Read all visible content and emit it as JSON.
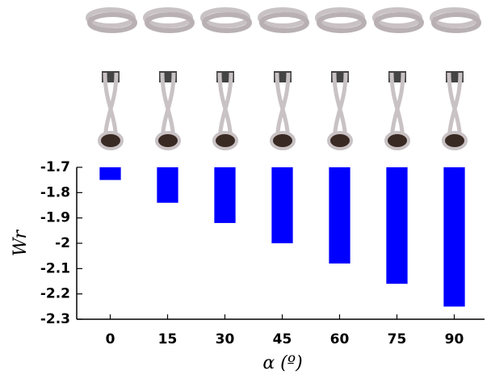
{
  "chart_data": {
    "type": "bar",
    "categories": [
      "0",
      "15",
      "30",
      "45",
      "60",
      "75",
      "90"
    ],
    "values": [
      -1.75,
      -1.84,
      -1.92,
      -2.0,
      -2.08,
      -2.16,
      -2.25
    ],
    "color": "#0000ff",
    "ylim": [
      -2.3,
      -1.7
    ],
    "yticks": [
      -2.3,
      -2.2,
      -2.1,
      -2,
      -1.9,
      -1.8,
      -1.7
    ],
    "ylabel": "Wr",
    "xlabel": "α (º)"
  }
}
